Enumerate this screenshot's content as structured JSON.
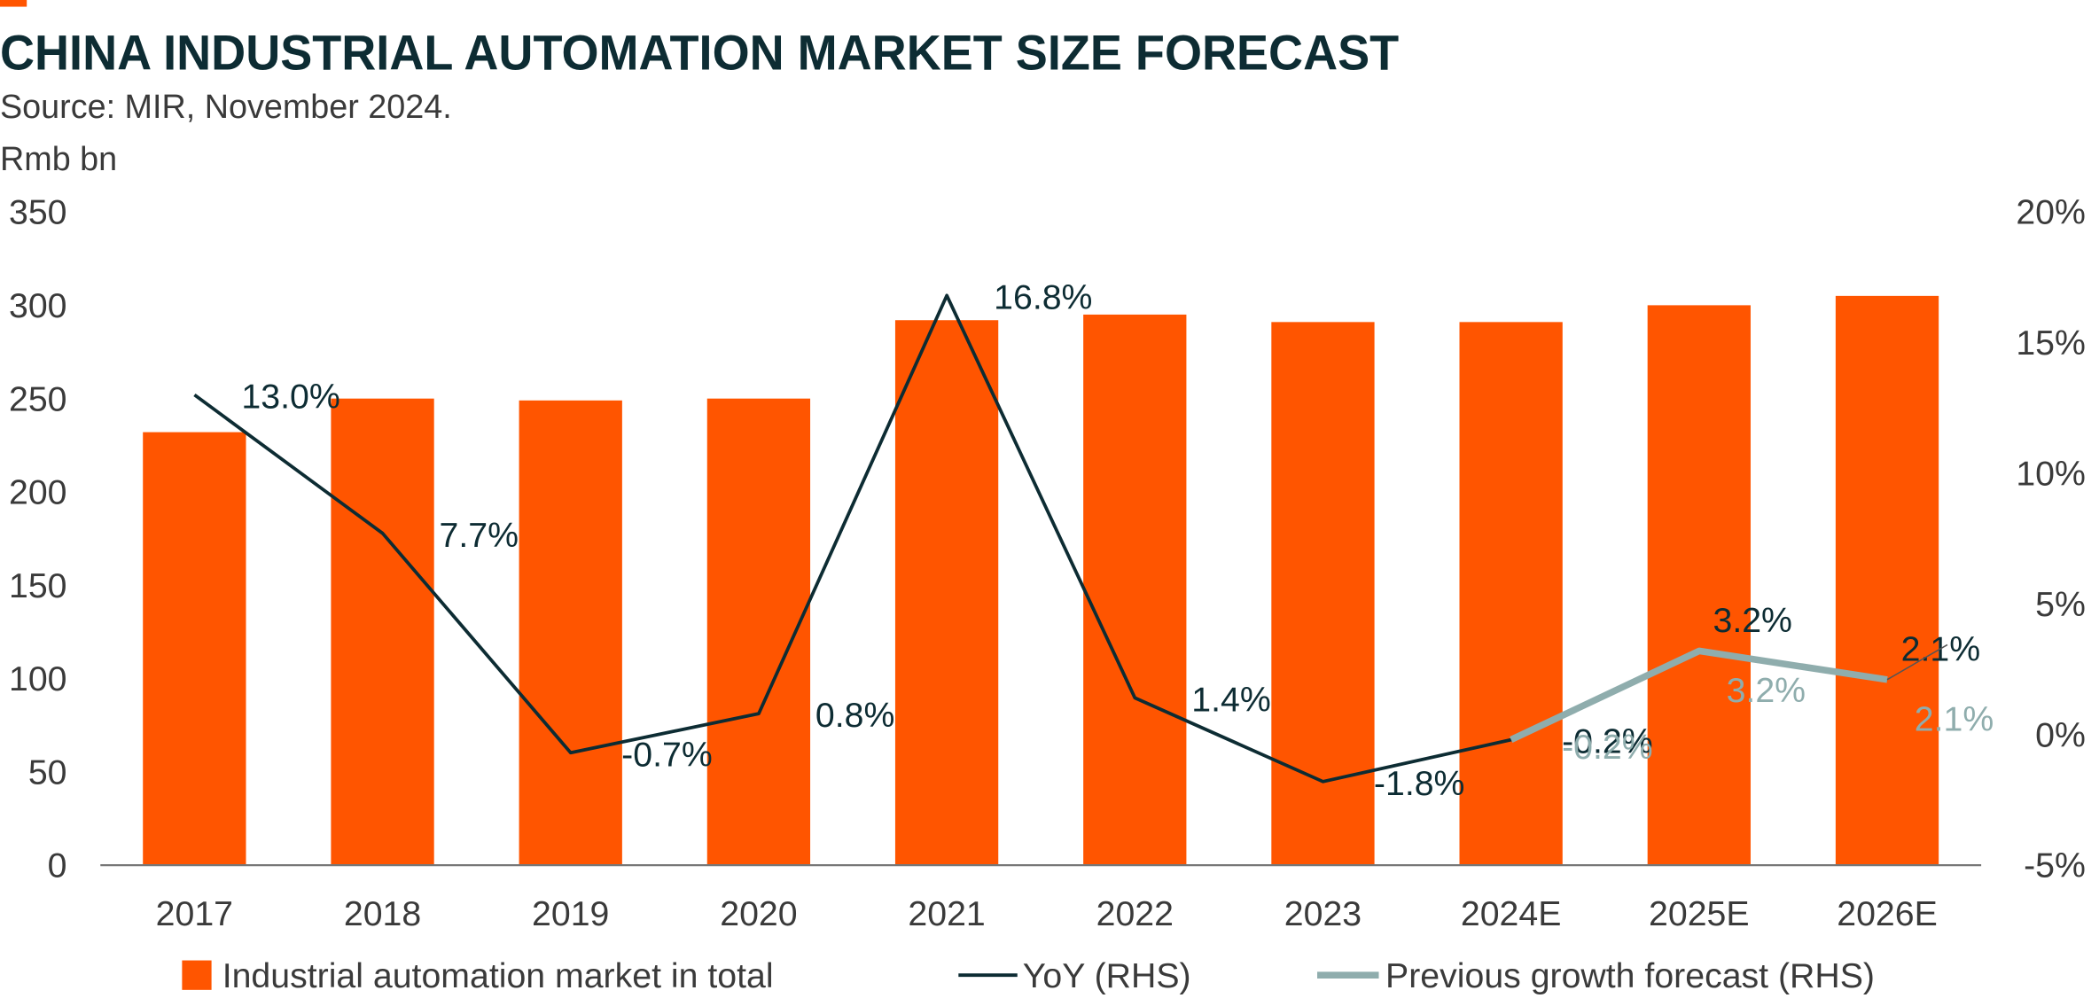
{
  "chart_data": {
    "type": "bar",
    "title": "CHINA INDUSTRIAL AUTOMATION MARKET SIZE FORECAST",
    "subtitle": "Source: MIR, November 2024.",
    "y_label": "Rmb bn",
    "categories": [
      "2017",
      "2018",
      "2019",
      "2020",
      "2021",
      "2022",
      "2023",
      "2024E",
      "2025E",
      "2026E"
    ],
    "series": [
      {
        "name": "Industrial automation market in total",
        "color": "#ff5500",
        "values": [
          232,
          250,
          249,
          250,
          292,
          295,
          291,
          291,
          300,
          305
        ]
      },
      {
        "name": "YoY (RHS)",
        "color": "#0d2c33",
        "axis": "y2",
        "type": "line",
        "values": [
          13.0,
          7.7,
          -0.7,
          0.8,
          16.8,
          1.4,
          -1.8,
          -0.2,
          3.2,
          2.1
        ],
        "value_labels": [
          "13.0%",
          "7.7%",
          "-0.7%",
          "0.8%",
          "16.8%",
          "1.4%",
          "-1.8%",
          "-0.2%",
          "3.2%",
          "2.1%"
        ]
      },
      {
        "name": "Previous growth forecast (RHS)",
        "color": "#8fadad",
        "axis": "y2",
        "type": "line",
        "values": [
          null,
          null,
          null,
          null,
          null,
          null,
          null,
          -0.2,
          3.2,
          2.1
        ],
        "value_labels": [
          null,
          null,
          null,
          null,
          null,
          null,
          null,
          "-0.2%",
          "3.2%",
          "2.1%"
        ]
      }
    ],
    "ylim": [
      0,
      350
    ],
    "yticks": [
      0,
      50,
      100,
      150,
      200,
      250,
      300,
      350
    ],
    "y2lim": [
      -5,
      20
    ],
    "y2ticks": [
      {
        "value": -5,
        "label": "-5%"
      },
      {
        "value": 0,
        "label": "0%"
      },
      {
        "value": 5,
        "label": "5%"
      },
      {
        "value": 10,
        "label": "10%"
      },
      {
        "value": 15,
        "label": "15%"
      },
      {
        "value": 20,
        "label": "20%"
      }
    ],
    "grid": false,
    "legend": "bottom"
  }
}
